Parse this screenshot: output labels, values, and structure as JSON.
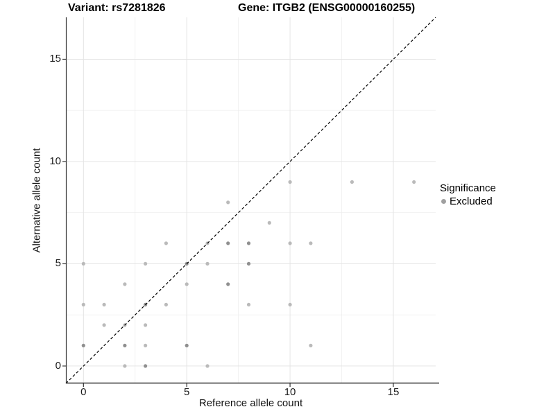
{
  "titles": {
    "variant": "Variant: rs7281826",
    "gene": "Gene: ITGB2 (ENSG00000160255)"
  },
  "axes": {
    "x": {
      "label": "Reference allele count"
    },
    "y": {
      "label": "Alternative allele count"
    }
  },
  "legend": {
    "title": "Significance",
    "items": [
      {
        "label": "Excluded",
        "color": "#a0a0a0"
      }
    ]
  },
  "style": {
    "point_color": "#bababa",
    "point_color_overlap": "#8f8f8f",
    "grid_major_color": "#e4e4e4",
    "grid_minor_color": "#ececec",
    "axis_color": "#333333",
    "reference_line_color": "#000000",
    "background": "#ffffff"
  },
  "chart_data": {
    "type": "scatter",
    "title": "Variant: rs7281826   |   Gene: ITGB2 (ENSG00000160255)",
    "xlabel": "Reference allele count",
    "ylabel": "Alternative allele count",
    "xlim": [
      -0.85,
      17.05
    ],
    "ylim": [
      -0.85,
      17.05
    ],
    "x_ticks": [
      0,
      5,
      10,
      15
    ],
    "y_ticks": [
      0,
      5,
      10,
      15
    ],
    "x_minor_gridlines": [
      2.5,
      7.5,
      12.5
    ],
    "y_minor_gridlines": [
      2.5,
      7.5,
      12.5
    ],
    "grid": true,
    "legend_position": "right",
    "reference_line": {
      "equation": "y = x",
      "style": "dashed",
      "color": "#000000"
    },
    "series": [
      {
        "name": "Excluded",
        "points_note": "each point is [reference_allele_count, alternative_allele_count, overlap_weight]",
        "points": [
          [
            2,
            0,
            1
          ],
          [
            3,
            0,
            2
          ],
          [
            6,
            0,
            1
          ],
          [
            0,
            1,
            2
          ],
          [
            2,
            1,
            2
          ],
          [
            3,
            1,
            1
          ],
          [
            5,
            1,
            2
          ],
          [
            11,
            1,
            1
          ],
          [
            1,
            2,
            1
          ],
          [
            2,
            2,
            1
          ],
          [
            3,
            2,
            1
          ],
          [
            0,
            3,
            1
          ],
          [
            1,
            3,
            1
          ],
          [
            3,
            3,
            2
          ],
          [
            4,
            3,
            1
          ],
          [
            8,
            3,
            1
          ],
          [
            10,
            3,
            1
          ],
          [
            2,
            4,
            1
          ],
          [
            5,
            4,
            1
          ],
          [
            7,
            4,
            2
          ],
          [
            0,
            5,
            1
          ],
          [
            3,
            5,
            1
          ],
          [
            5,
            5,
            2
          ],
          [
            6,
            5,
            1
          ],
          [
            8,
            5,
            2
          ],
          [
            4,
            6,
            1
          ],
          [
            6,
            6,
            1
          ],
          [
            7,
            6,
            2
          ],
          [
            8,
            6,
            2
          ],
          [
            10,
            6,
            1
          ],
          [
            11,
            6,
            1
          ],
          [
            9,
            7,
            1
          ],
          [
            7,
            8,
            1
          ],
          [
            10,
            9,
            1
          ],
          [
            13,
            9,
            1
          ],
          [
            16,
            9,
            1
          ]
        ]
      }
    ]
  }
}
